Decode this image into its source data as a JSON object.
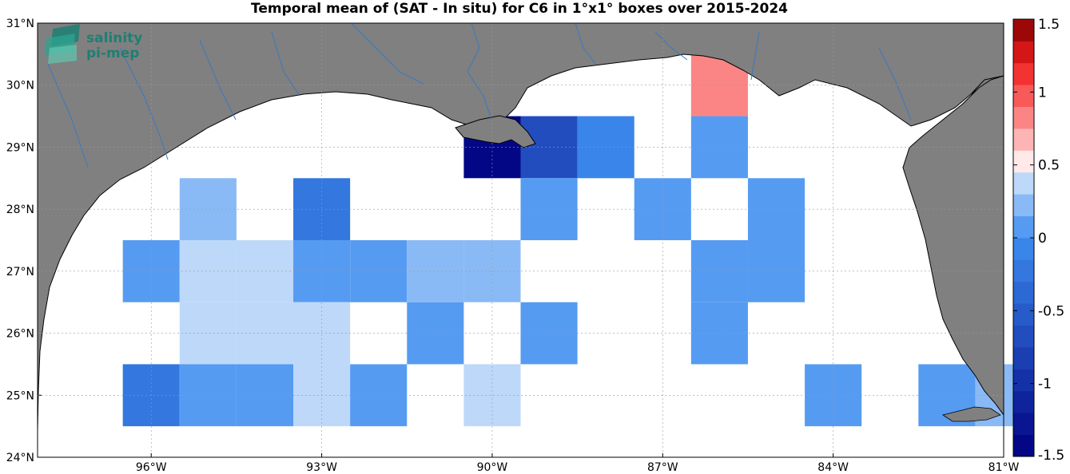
{
  "title": "Temporal mean of (SAT - In situ) for C6 in 1°x1° boxes over 2015-2024",
  "logo": {
    "line1": "salinity",
    "line2": "pi-mep",
    "color": "#1e7f73"
  },
  "colors": {
    "land": "#808080",
    "sea": "#ffffff",
    "rivers": "#3a78c0",
    "coast": "#000000"
  },
  "map": {
    "lon_range": [
      -98,
      -81
    ],
    "lat_range": [
      24,
      31
    ],
    "x_ticks": [
      {
        "v": -96,
        "label": "96°W"
      },
      {
        "v": -93,
        "label": "93°W"
      },
      {
        "v": -90,
        "label": "90°W"
      },
      {
        "v": -87,
        "label": "87°W"
      },
      {
        "v": -84,
        "label": "84°W"
      },
      {
        "v": -81,
        "label": "81°W"
      }
    ],
    "y_ticks": [
      {
        "v": 24,
        "label": "24°N"
      },
      {
        "v": 25,
        "label": "25°N"
      },
      {
        "v": 26,
        "label": "26°N"
      },
      {
        "v": 27,
        "label": "27°N"
      },
      {
        "v": 28,
        "label": "28°N"
      },
      {
        "v": 29,
        "label": "29°N"
      },
      {
        "v": 30,
        "label": "30°N"
      },
      {
        "v": 31,
        "label": "31°N"
      }
    ],
    "grid": true
  },
  "chart_data": {
    "type": "heatmap",
    "title": "Temporal mean of (SAT - In situ) for C6 in 1°x1° boxes over 2015-2024",
    "cell_size_deg": 1,
    "color_range": [
      -1.5,
      1.5
    ],
    "colorbar_ticks": [
      1.5,
      1,
      0.5,
      0,
      -0.5,
      -1,
      -1.5
    ],
    "cells": [
      {
        "lon": -86,
        "lat": 30,
        "value": 0.9
      },
      {
        "lon": -90,
        "lat": 29,
        "value": -1.45
      },
      {
        "lon": -89,
        "lat": 29,
        "value": -0.75
      },
      {
        "lon": -88,
        "lat": 29,
        "value": -0.1
      },
      {
        "lon": -86,
        "lat": 29,
        "value": 0.15
      },
      {
        "lon": -95,
        "lat": 28,
        "value": 0.25
      },
      {
        "lon": -93,
        "lat": 28,
        "value": -0.2
      },
      {
        "lon": -89,
        "lat": 28,
        "value": 0.15
      },
      {
        "lon": -87,
        "lat": 28,
        "value": 0.15
      },
      {
        "lon": -85,
        "lat": 28,
        "value": 0.15
      },
      {
        "lon": -96,
        "lat": 27,
        "value": 0.15
      },
      {
        "lon": -95,
        "lat": 27,
        "value": 0.4
      },
      {
        "lon": -94,
        "lat": 27,
        "value": 0.3
      },
      {
        "lon": -93,
        "lat": 27,
        "value": 0.15
      },
      {
        "lon": -92,
        "lat": 27,
        "value": 0.15
      },
      {
        "lon": -91,
        "lat": 27,
        "value": 0.25
      },
      {
        "lon": -90,
        "lat": 27,
        "value": 0.25
      },
      {
        "lon": -86,
        "lat": 27,
        "value": 0.15
      },
      {
        "lon": -85,
        "lat": 27,
        "value": 0.15
      },
      {
        "lon": -95,
        "lat": 26,
        "value": 0.3
      },
      {
        "lon": -94,
        "lat": 26,
        "value": 0.3
      },
      {
        "lon": -93,
        "lat": 26,
        "value": 0.3
      },
      {
        "lon": -91,
        "lat": 26,
        "value": 0.15
      },
      {
        "lon": -89,
        "lat": 26,
        "value": 0.15
      },
      {
        "lon": -86,
        "lat": 26,
        "value": 0.15
      },
      {
        "lon": -96,
        "lat": 25,
        "value": -0.2
      },
      {
        "lon": -95,
        "lat": 25,
        "value": 0.15
      },
      {
        "lon": -94,
        "lat": 25,
        "value": 0.15
      },
      {
        "lon": -93,
        "lat": 25,
        "value": 0.3
      },
      {
        "lon": -92,
        "lat": 25,
        "value": 0.15
      },
      {
        "lon": -90,
        "lat": 25,
        "value": 0.3
      },
      {
        "lon": -84,
        "lat": 25,
        "value": 0.15
      },
      {
        "lon": -82,
        "lat": 25,
        "value": 0.15
      },
      {
        "lon": -81,
        "lat": 25,
        "value": 0.25
      }
    ]
  }
}
